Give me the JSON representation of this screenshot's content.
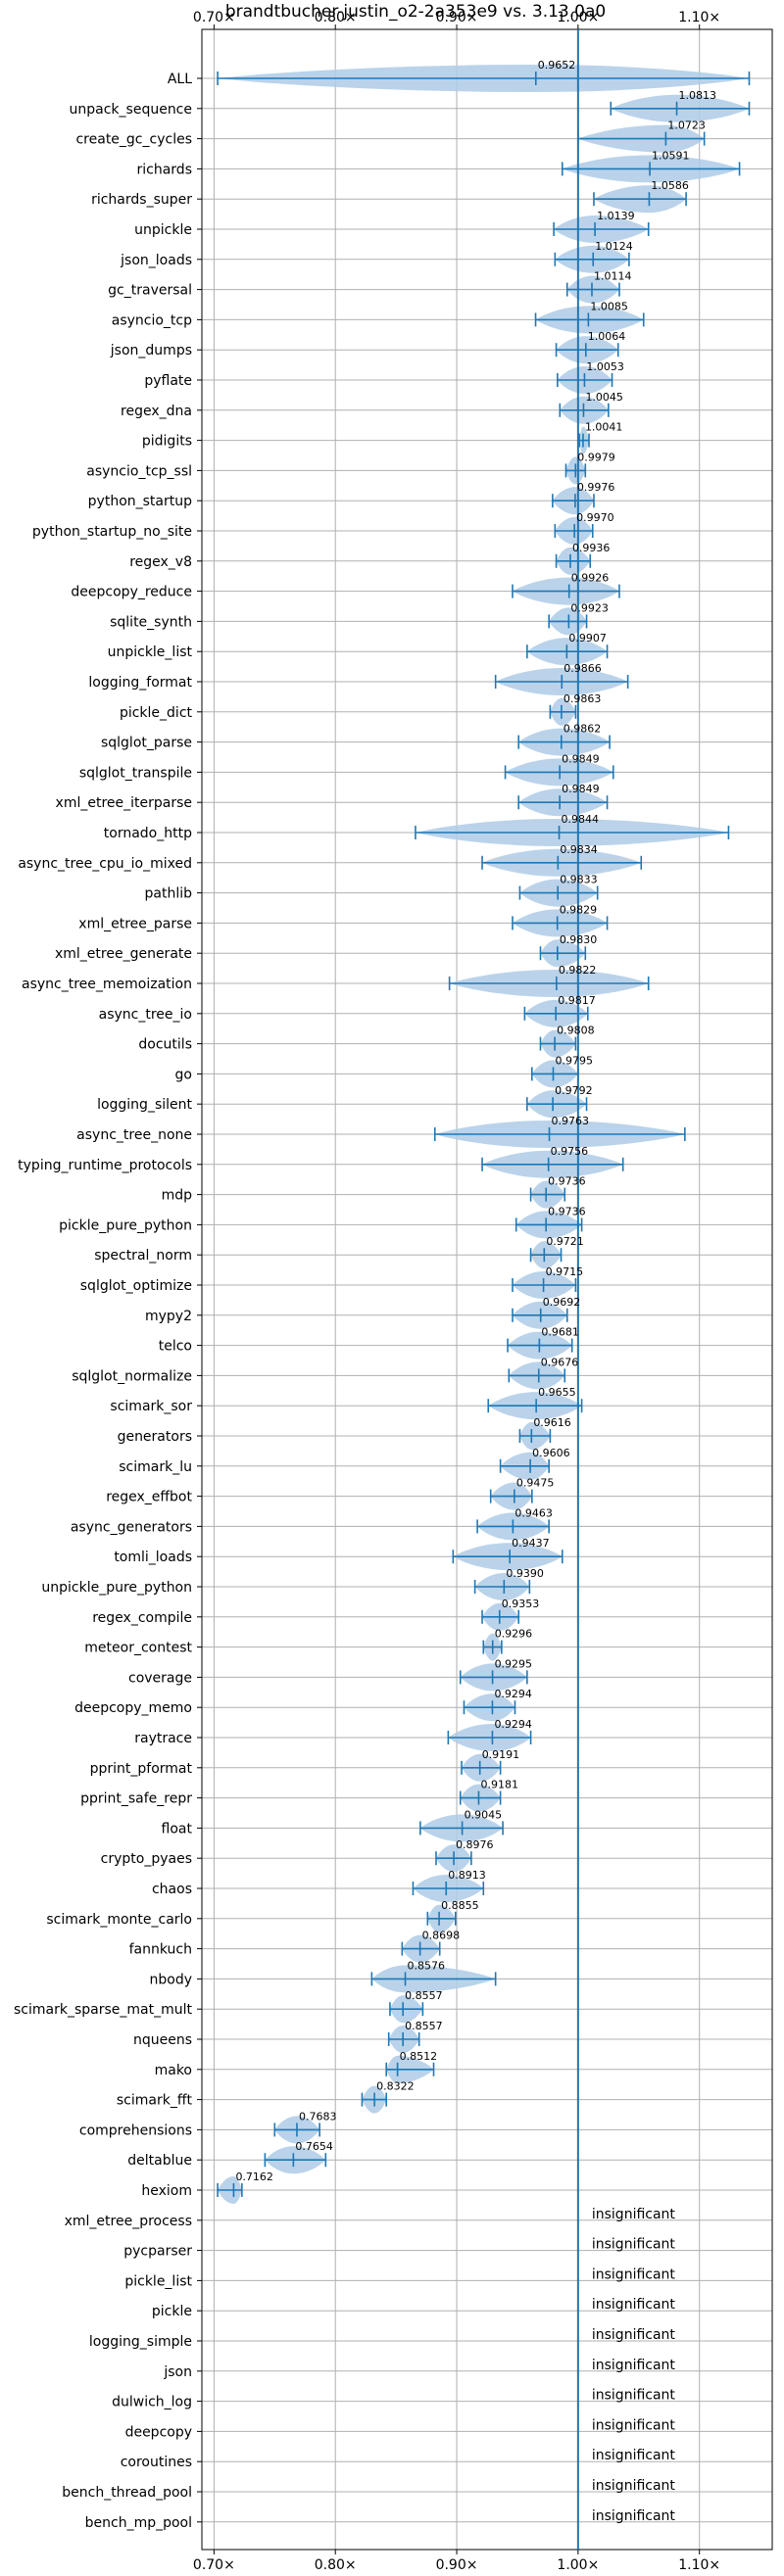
{
  "chart_data": {
    "type": "violin",
    "title": "brandtbucher-justin_o2-2a353e9 vs. 3.13.0a0",
    "xlim": [
      0.69,
      1.16
    ],
    "xticks": [
      {
        "value": 0.7,
        "label": "0.70×"
      },
      {
        "value": 0.8,
        "label": "0.80×"
      },
      {
        "value": 0.9,
        "label": "0.90×"
      },
      {
        "value": 1.0,
        "label": "1.00×"
      },
      {
        "value": 1.1,
        "label": "1.10×"
      }
    ],
    "reference_line": 1.0,
    "grid": true,
    "colors": {
      "violin": "#aecbe6",
      "line": "#1f77b4",
      "grid": "#b0b0b0"
    },
    "benchmarks": [
      {
        "name": "ALL",
        "value": 0.9652,
        "label": "0.9652",
        "min": 0.703,
        "max": 1.141,
        "width": 0.055
      },
      {
        "name": "unpack_sequence",
        "value": 1.0813,
        "label": "1.0813",
        "min": 1.027,
        "max": 1.141,
        "width": 0.06
      },
      {
        "name": "create_gc_cycles",
        "value": 1.0723,
        "label": "1.0723",
        "min": 1.0,
        "max": 1.104,
        "width": 0.02
      },
      {
        "name": "richards",
        "value": 1.0591,
        "label": "1.0591",
        "min": 0.987,
        "max": 1.133,
        "width": 0.06
      },
      {
        "name": "richards_super",
        "value": 1.0586,
        "label": "1.0586",
        "min": 1.013,
        "max": 1.089,
        "width": 0.045
      },
      {
        "name": "unpickle",
        "value": 1.0139,
        "label": "1.0139",
        "min": 0.98,
        "max": 1.058,
        "width": 0.045
      },
      {
        "name": "json_loads",
        "value": 1.0124,
        "label": "1.0124",
        "min": 0.981,
        "max": 1.042,
        "width": 0.04
      },
      {
        "name": "gc_traversal",
        "value": 1.0114,
        "label": "1.0114",
        "min": 0.991,
        "max": 1.034,
        "width": 0.04
      },
      {
        "name": "asyncio_tcp",
        "value": 1.0085,
        "label": "1.0085",
        "min": 0.965,
        "max": 1.054,
        "width": 0.04
      },
      {
        "name": "json_dumps",
        "value": 1.0064,
        "label": "1.0064",
        "min": 0.982,
        "max": 1.033,
        "width": 0.04
      },
      {
        "name": "pyflate",
        "value": 1.0053,
        "label": "1.0053",
        "min": 0.983,
        "max": 1.028,
        "width": 0.04
      },
      {
        "name": "regex_dna",
        "value": 1.0045,
        "label": "1.0045",
        "min": 0.985,
        "max": 1.025,
        "width": 0.035
      },
      {
        "name": "pidigits",
        "value": 1.0041,
        "label": "1.0041",
        "min": 1.001,
        "max": 1.009,
        "width": 0.03
      },
      {
        "name": "asyncio_tcp_ssl",
        "value": 0.9979,
        "label": "0.9979",
        "min": 0.99,
        "max": 1.006,
        "width": 0.03
      },
      {
        "name": "python_startup",
        "value": 0.9976,
        "label": "0.9976",
        "min": 0.979,
        "max": 1.013,
        "width": 0.04
      },
      {
        "name": "python_startup_no_site",
        "value": 0.997,
        "label": "0.9970",
        "min": 0.981,
        "max": 1.012,
        "width": 0.04
      },
      {
        "name": "regex_v8",
        "value": 0.9936,
        "label": "0.9936",
        "min": 0.982,
        "max": 1.01,
        "width": 0.04
      },
      {
        "name": "deepcopy_reduce",
        "value": 0.9926,
        "label": "0.9926",
        "min": 0.946,
        "max": 1.034,
        "width": 0.035
      },
      {
        "name": "sqlite_synth",
        "value": 0.9923,
        "label": "0.9923",
        "min": 0.976,
        "max": 1.007,
        "width": 0.04
      },
      {
        "name": "unpickle_list",
        "value": 0.9907,
        "label": "0.9907",
        "min": 0.958,
        "max": 1.024,
        "width": 0.04
      },
      {
        "name": "logging_format",
        "value": 0.9866,
        "label": "0.9866",
        "min": 0.932,
        "max": 1.041,
        "width": 0.04
      },
      {
        "name": "pickle_dict",
        "value": 0.9863,
        "label": "0.9863",
        "min": 0.977,
        "max": 0.998,
        "width": 0.04
      },
      {
        "name": "sqlglot_parse",
        "value": 0.9862,
        "label": "0.9862",
        "min": 0.951,
        "max": 1.026,
        "width": 0.04
      },
      {
        "name": "sqlglot_transpile",
        "value": 0.9849,
        "label": "0.9849",
        "min": 0.94,
        "max": 1.029,
        "width": 0.04
      },
      {
        "name": "xml_etree_iterparse",
        "value": 0.9849,
        "label": "0.9849",
        "min": 0.951,
        "max": 1.024,
        "width": 0.04
      },
      {
        "name": "tornado_http",
        "value": 0.9844,
        "label": "0.9844",
        "min": 0.866,
        "max": 1.124,
        "width": 0.045
      },
      {
        "name": "async_tree_cpu_io_mixed",
        "value": 0.9834,
        "label": "0.9834",
        "min": 0.921,
        "max": 1.052,
        "width": 0.04
      },
      {
        "name": "pathlib",
        "value": 0.9833,
        "label": "0.9833",
        "min": 0.952,
        "max": 1.016,
        "width": 0.04
      },
      {
        "name": "xml_etree_parse",
        "value": 0.9829,
        "label": "0.9829",
        "min": 0.946,
        "max": 1.024,
        "width": 0.04
      },
      {
        "name": "xml_etree_generate",
        "value": 0.983,
        "label": "0.9830",
        "min": 0.969,
        "max": 1.006,
        "width": 0.04
      },
      {
        "name": "async_tree_memoization",
        "value": 0.9822,
        "label": "0.9822",
        "min": 0.894,
        "max": 1.058,
        "width": 0.04
      },
      {
        "name": "async_tree_io",
        "value": 0.9817,
        "label": "0.9817",
        "min": 0.956,
        "max": 1.008,
        "width": 0.04
      },
      {
        "name": "docutils",
        "value": 0.9808,
        "label": "0.9808",
        "min": 0.969,
        "max": 0.998,
        "width": 0.04
      },
      {
        "name": "go",
        "value": 0.9795,
        "label": "0.9795",
        "min": 0.962,
        "max": 1.0,
        "width": 0.04
      },
      {
        "name": "logging_silent",
        "value": 0.9792,
        "label": "0.9792",
        "min": 0.958,
        "max": 1.007,
        "width": 0.04
      },
      {
        "name": "async_tree_none",
        "value": 0.9763,
        "label": "0.9763",
        "min": 0.882,
        "max": 1.088,
        "width": 0.04
      },
      {
        "name": "typing_runtime_protocols",
        "value": 0.9756,
        "label": "0.9756",
        "min": 0.921,
        "max": 1.037,
        "width": 0.04
      },
      {
        "name": "mdp",
        "value": 0.9736,
        "label": "0.9736",
        "min": 0.961,
        "max": 0.989,
        "width": 0.04
      },
      {
        "name": "pickle_pure_python",
        "value": 0.9736,
        "label": "0.9736",
        "min": 0.949,
        "max": 1.003,
        "width": 0.04
      },
      {
        "name": "spectral_norm",
        "value": 0.9721,
        "label": "0.9721",
        "min": 0.961,
        "max": 0.986,
        "width": 0.04
      },
      {
        "name": "sqlglot_optimize",
        "value": 0.9715,
        "label": "0.9715",
        "min": 0.946,
        "max": 0.998,
        "width": 0.04
      },
      {
        "name": "mypy2",
        "value": 0.9692,
        "label": "0.9692",
        "min": 0.946,
        "max": 0.991,
        "width": 0.04
      },
      {
        "name": "telco",
        "value": 0.9681,
        "label": "0.9681",
        "min": 0.942,
        "max": 0.995,
        "width": 0.04
      },
      {
        "name": "sqlglot_normalize",
        "value": 0.9676,
        "label": "0.9676",
        "min": 0.943,
        "max": 0.989,
        "width": 0.04
      },
      {
        "name": "scimark_sor",
        "value": 0.9655,
        "label": "0.9655",
        "min": 0.926,
        "max": 1.003,
        "width": 0.04
      },
      {
        "name": "generators",
        "value": 0.9616,
        "label": "0.9616",
        "min": 0.952,
        "max": 0.977,
        "width": 0.04
      },
      {
        "name": "scimark_lu",
        "value": 0.9606,
        "label": "0.9606",
        "min": 0.936,
        "max": 0.976,
        "width": 0.04
      },
      {
        "name": "regex_effbot",
        "value": 0.9475,
        "label": "0.9475",
        "min": 0.928,
        "max": 0.962,
        "width": 0.04
      },
      {
        "name": "async_generators",
        "value": 0.9463,
        "label": "0.9463",
        "min": 0.917,
        "max": 0.976,
        "width": 0.04
      },
      {
        "name": "tomli_loads",
        "value": 0.9437,
        "label": "0.9437",
        "min": 0.897,
        "max": 0.987,
        "width": 0.04
      },
      {
        "name": "unpickle_pure_python",
        "value": 0.939,
        "label": "0.9390",
        "min": 0.915,
        "max": 0.96,
        "width": 0.04
      },
      {
        "name": "regex_compile",
        "value": 0.9353,
        "label": "0.9353",
        "min": 0.921,
        "max": 0.951,
        "width": 0.04
      },
      {
        "name": "meteor_contest",
        "value": 0.9296,
        "label": "0.9296",
        "min": 0.922,
        "max": 0.937,
        "width": 0.04
      },
      {
        "name": "coverage",
        "value": 0.9295,
        "label": "0.9295",
        "min": 0.903,
        "max": 0.958,
        "width": 0.04
      },
      {
        "name": "deepcopy_memo",
        "value": 0.9294,
        "label": "0.9294",
        "min": 0.906,
        "max": 0.948,
        "width": 0.04
      },
      {
        "name": "raytrace",
        "value": 0.9294,
        "label": "0.9294",
        "min": 0.893,
        "max": 0.961,
        "width": 0.04
      },
      {
        "name": "pprint_pformat",
        "value": 0.9191,
        "label": "0.9191",
        "min": 0.904,
        "max": 0.936,
        "width": 0.04
      },
      {
        "name": "pprint_safe_repr",
        "value": 0.9181,
        "label": "0.9181",
        "min": 0.903,
        "max": 0.936,
        "width": 0.04
      },
      {
        "name": "float",
        "value": 0.9045,
        "label": "0.9045",
        "min": 0.87,
        "max": 0.938,
        "width": 0.04
      },
      {
        "name": "crypto_pyaes",
        "value": 0.8976,
        "label": "0.8976",
        "min": 0.883,
        "max": 0.912,
        "width": 0.04
      },
      {
        "name": "chaos",
        "value": 0.8913,
        "label": "0.8913",
        "min": 0.864,
        "max": 0.922,
        "width": 0.04
      },
      {
        "name": "scimark_monte_carlo",
        "value": 0.8855,
        "label": "0.8855",
        "min": 0.876,
        "max": 0.899,
        "width": 0.04
      },
      {
        "name": "fannkuch",
        "value": 0.8698,
        "label": "0.8698",
        "min": 0.855,
        "max": 0.886,
        "width": 0.04
      },
      {
        "name": "nbody",
        "value": 0.8576,
        "label": "0.8576",
        "min": 0.83,
        "max": 0.932,
        "width": 0.04
      },
      {
        "name": "scimark_sparse_mat_mult",
        "value": 0.8557,
        "label": "0.8557",
        "min": 0.845,
        "max": 0.872,
        "width": 0.04
      },
      {
        "name": "nqueens",
        "value": 0.8557,
        "label": "0.8557",
        "min": 0.844,
        "max": 0.869,
        "width": 0.04
      },
      {
        "name": "mako",
        "value": 0.8512,
        "label": "0.8512",
        "min": 0.842,
        "max": 0.881,
        "width": 0.04
      },
      {
        "name": "scimark_fft",
        "value": 0.8322,
        "label": "0.8322",
        "min": 0.822,
        "max": 0.842,
        "width": 0.04
      },
      {
        "name": "comprehensions",
        "value": 0.7683,
        "label": "0.7683",
        "min": 0.75,
        "max": 0.787,
        "width": 0.04
      },
      {
        "name": "deltablue",
        "value": 0.7654,
        "label": "0.7654",
        "min": 0.742,
        "max": 0.792,
        "width": 0.04
      },
      {
        "name": "hexiom",
        "value": 0.7162,
        "label": "0.7162",
        "min": 0.703,
        "max": 0.723,
        "width": 0.04
      }
    ],
    "insignificant": [
      "xml_etree_process",
      "pycparser",
      "pickle_list",
      "pickle",
      "logging_simple",
      "json",
      "dulwich_log",
      "deepcopy",
      "coroutines",
      "bench_thread_pool",
      "bench_mp_pool"
    ],
    "insignificant_label": "insignificant"
  }
}
